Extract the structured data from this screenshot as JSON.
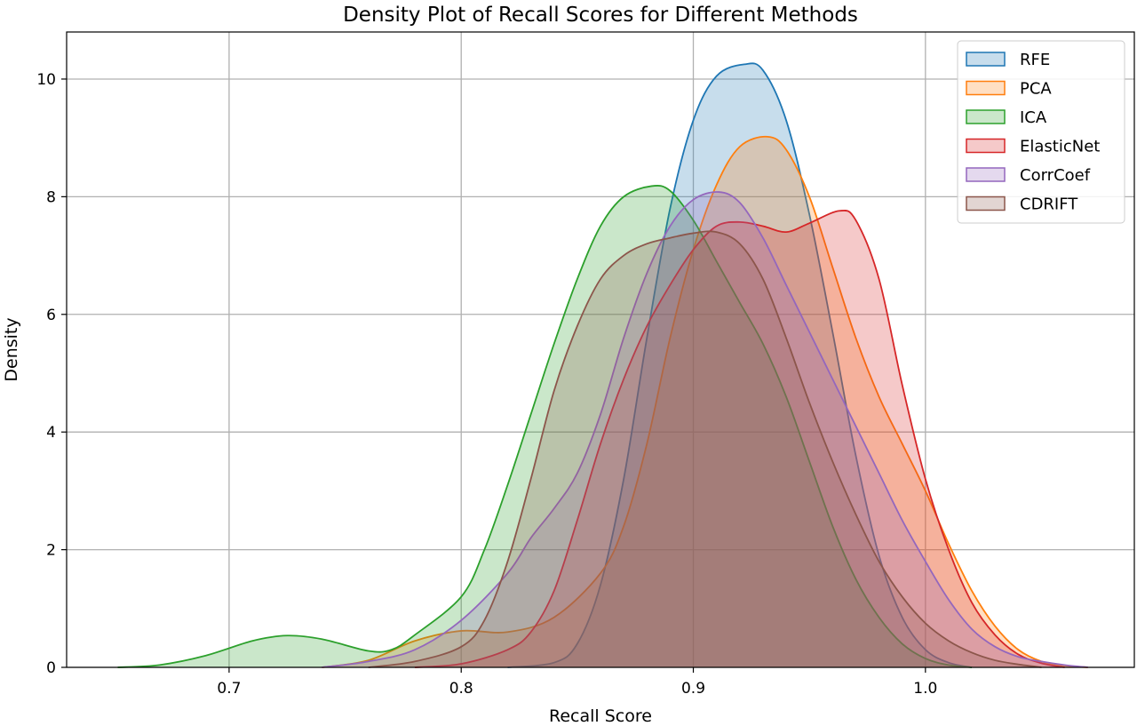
{
  "chart_data": {
    "type": "area",
    "title": "Density Plot of Recall Scores for Different Methods",
    "xlabel": "Recall Score",
    "ylabel": "Density",
    "xlim": [
      0.63,
      1.09
    ],
    "ylim": [
      0,
      10.8
    ],
    "xticks": [
      0.7,
      0.8,
      0.9,
      1.0
    ],
    "xtick_labels": [
      "0.7",
      "0.8",
      "0.9",
      "1.0"
    ],
    "yticks": [
      0,
      2,
      4,
      6,
      8,
      10
    ],
    "ytick_labels": [
      "0",
      "2",
      "4",
      "6",
      "8",
      "10"
    ],
    "grid": true,
    "legend_position": "top-right",
    "series": [
      {
        "name": "RFE",
        "color": "#1f77b4",
        "points": [
          [
            0.82,
            0
          ],
          [
            0.84,
            0.08
          ],
          [
            0.85,
            0.4
          ],
          [
            0.86,
            1.4
          ],
          [
            0.87,
            3.2
          ],
          [
            0.88,
            5.6
          ],
          [
            0.89,
            7.8
          ],
          [
            0.9,
            9.3
          ],
          [
            0.91,
            10.05
          ],
          [
            0.922,
            10.25
          ],
          [
            0.93,
            10.15
          ],
          [
            0.94,
            9.3
          ],
          [
            0.95,
            7.7
          ],
          [
            0.96,
            5.7
          ],
          [
            0.97,
            3.6
          ],
          [
            0.98,
            1.9
          ],
          [
            0.99,
            0.85
          ],
          [
            1.0,
            0.3
          ],
          [
            1.01,
            0.08
          ],
          [
            1.02,
            0
          ]
        ]
      },
      {
        "name": "PCA",
        "color": "#ff7f0e",
        "points": [
          [
            0.74,
            0
          ],
          [
            0.76,
            0.12
          ],
          [
            0.78,
            0.45
          ],
          [
            0.8,
            0.62
          ],
          [
            0.82,
            0.6
          ],
          [
            0.84,
            0.85
          ],
          [
            0.86,
            1.6
          ],
          [
            0.87,
            2.4
          ],
          [
            0.88,
            3.8
          ],
          [
            0.89,
            5.6
          ],
          [
            0.9,
            7.1
          ],
          [
            0.91,
            8.2
          ],
          [
            0.92,
            8.85
          ],
          [
            0.932,
            9.02
          ],
          [
            0.94,
            8.8
          ],
          [
            0.95,
            8.0
          ],
          [
            0.96,
            6.8
          ],
          [
            0.97,
            5.6
          ],
          [
            0.98,
            4.6
          ],
          [
            0.99,
            3.8
          ],
          [
            1.0,
            3.0
          ],
          [
            1.01,
            2.1
          ],
          [
            1.02,
            1.3
          ],
          [
            1.03,
            0.7
          ],
          [
            1.04,
            0.3
          ],
          [
            1.05,
            0.1
          ],
          [
            1.06,
            0.03
          ],
          [
            1.07,
            0
          ]
        ]
      },
      {
        "name": "ICA",
        "color": "#2ca02c",
        "points": [
          [
            0.652,
            0
          ],
          [
            0.67,
            0.04
          ],
          [
            0.69,
            0.2
          ],
          [
            0.71,
            0.45
          ],
          [
            0.725,
            0.54
          ],
          [
            0.74,
            0.48
          ],
          [
            0.76,
            0.28
          ],
          [
            0.77,
            0.3
          ],
          [
            0.78,
            0.55
          ],
          [
            0.8,
            1.2
          ],
          [
            0.81,
            2.0
          ],
          [
            0.82,
            3.1
          ],
          [
            0.83,
            4.3
          ],
          [
            0.84,
            5.5
          ],
          [
            0.85,
            6.6
          ],
          [
            0.86,
            7.5
          ],
          [
            0.87,
            8.0
          ],
          [
            0.882,
            8.18
          ],
          [
            0.89,
            8.1
          ],
          [
            0.9,
            7.6
          ],
          [
            0.91,
            6.9
          ],
          [
            0.92,
            6.2
          ],
          [
            0.93,
            5.5
          ],
          [
            0.94,
            4.6
          ],
          [
            0.95,
            3.5
          ],
          [
            0.96,
            2.4
          ],
          [
            0.97,
            1.5
          ],
          [
            0.98,
            0.85
          ],
          [
            0.99,
            0.4
          ],
          [
            1.0,
            0.15
          ],
          [
            1.01,
            0.04
          ],
          [
            1.02,
            0
          ]
        ]
      },
      {
        "name": "ElasticNet",
        "color": "#d62728",
        "points": [
          [
            0.78,
            0
          ],
          [
            0.8,
            0.06
          ],
          [
            0.82,
            0.3
          ],
          [
            0.83,
            0.6
          ],
          [
            0.84,
            1.3
          ],
          [
            0.85,
            2.5
          ],
          [
            0.86,
            3.8
          ],
          [
            0.87,
            4.9
          ],
          [
            0.88,
            5.8
          ],
          [
            0.89,
            6.5
          ],
          [
            0.9,
            7.1
          ],
          [
            0.91,
            7.5
          ],
          [
            0.92,
            7.57
          ],
          [
            0.93,
            7.5
          ],
          [
            0.94,
            7.4
          ],
          [
            0.95,
            7.55
          ],
          [
            0.963,
            7.76
          ],
          [
            0.97,
            7.6
          ],
          [
            0.98,
            6.6
          ],
          [
            0.99,
            4.8
          ],
          [
            1.0,
            3.2
          ],
          [
            1.01,
            2.0
          ],
          [
            1.02,
            1.1
          ],
          [
            1.03,
            0.55
          ],
          [
            1.04,
            0.22
          ],
          [
            1.05,
            0.07
          ],
          [
            1.06,
            0
          ]
        ]
      },
      {
        "name": "CorrCoef",
        "color": "#9467bd",
        "points": [
          [
            0.74,
            0
          ],
          [
            0.76,
            0.1
          ],
          [
            0.78,
            0.3
          ],
          [
            0.8,
            0.8
          ],
          [
            0.82,
            1.6
          ],
          [
            0.83,
            2.2
          ],
          [
            0.84,
            2.7
          ],
          [
            0.85,
            3.3
          ],
          [
            0.86,
            4.3
          ],
          [
            0.87,
            5.6
          ],
          [
            0.88,
            6.7
          ],
          [
            0.89,
            7.5
          ],
          [
            0.9,
            7.95
          ],
          [
            0.911,
            8.08
          ],
          [
            0.92,
            7.9
          ],
          [
            0.93,
            7.3
          ],
          [
            0.94,
            6.5
          ],
          [
            0.95,
            5.7
          ],
          [
            0.96,
            4.9
          ],
          [
            0.97,
            4.1
          ],
          [
            0.98,
            3.3
          ],
          [
            0.99,
            2.5
          ],
          [
            1.0,
            1.8
          ],
          [
            1.01,
            1.15
          ],
          [
            1.02,
            0.65
          ],
          [
            1.03,
            0.35
          ],
          [
            1.04,
            0.18
          ],
          [
            1.05,
            0.1
          ],
          [
            1.06,
            0.04
          ],
          [
            1.07,
            0
          ]
        ]
      },
      {
        "name": "CDRIFT",
        "color": "#8c564b",
        "points": [
          [
            0.76,
            0
          ],
          [
            0.78,
            0.1
          ],
          [
            0.8,
            0.35
          ],
          [
            0.81,
            0.8
          ],
          [
            0.82,
            1.8
          ],
          [
            0.83,
            3.2
          ],
          [
            0.84,
            4.7
          ],
          [
            0.85,
            5.8
          ],
          [
            0.86,
            6.6
          ],
          [
            0.87,
            7.0
          ],
          [
            0.88,
            7.2
          ],
          [
            0.89,
            7.3
          ],
          [
            0.9,
            7.38
          ],
          [
            0.91,
            7.4
          ],
          [
            0.92,
            7.2
          ],
          [
            0.93,
            6.6
          ],
          [
            0.94,
            5.6
          ],
          [
            0.95,
            4.5
          ],
          [
            0.96,
            3.5
          ],
          [
            0.97,
            2.6
          ],
          [
            0.98,
            1.8
          ],
          [
            0.99,
            1.2
          ],
          [
            1.0,
            0.75
          ],
          [
            1.01,
            0.45
          ],
          [
            1.02,
            0.25
          ],
          [
            1.03,
            0.12
          ],
          [
            1.04,
            0.05
          ],
          [
            1.05,
            0
          ]
        ]
      }
    ]
  }
}
